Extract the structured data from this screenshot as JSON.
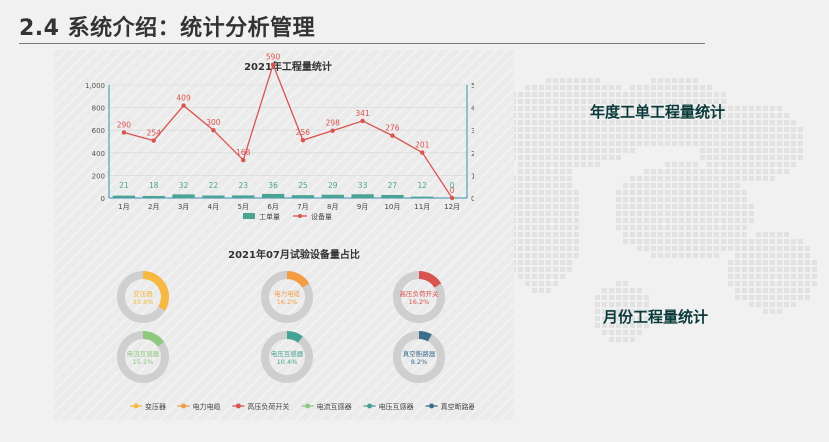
{
  "slide": {
    "title": "2.4 系统介绍：统计分析管理",
    "annual_label": "年度工单工程量统计",
    "monthly_label": "月份工程量统计"
  },
  "colors": {
    "bar": "#4ba396",
    "line": "#d9534f",
    "axis": "#3a8fb7",
    "ring_track": "#cfcfcf",
    "title_text": "#333333"
  },
  "chart_data": [
    {
      "type": "bar",
      "title": "2021年工程量统计",
      "categories": [
        "1月",
        "2月",
        "3月",
        "4月",
        "5月",
        "6月",
        "7月",
        "8月",
        "9月",
        "10月",
        "11月",
        "12月"
      ],
      "series": [
        {
          "name": "工单量",
          "kind": "bar",
          "axis": "left",
          "color": "#4ba396",
          "values": [
            21,
            18,
            32,
            22,
            23,
            36,
            25,
            29,
            33,
            27,
            12,
            0
          ]
        },
        {
          "name": "设备量",
          "kind": "line",
          "axis": "right",
          "color": "#d9534f",
          "values": [
            290,
            254,
            409,
            300,
            168,
            590,
            256,
            298,
            341,
            276,
            201,
            0
          ]
        }
      ],
      "y_left": {
        "min": 0,
        "max": 1000,
        "ticks": [
          "0",
          "200",
          "400",
          "600",
          "800",
          "1,000"
        ]
      },
      "y_right": {
        "min": 0,
        "max": 500,
        "ticks": [
          "0",
          "100",
          "200",
          "300",
          "400",
          "500"
        ]
      },
      "grid": true,
      "legend_position": "bottom"
    },
    {
      "type": "pie",
      "subtype": "donut",
      "title": "2021年07月试验设备量占比",
      "slices": [
        {
          "name": "变压器",
          "value": 33.8,
          "label": "33.8%",
          "color": "#f5b942"
        },
        {
          "name": "电力电缆",
          "value": 16.2,
          "label": "16.2%",
          "color": "#f39c41"
        },
        {
          "name": "高压负荷开关",
          "value": 16.2,
          "label": "16.2%",
          "color": "#d9534f"
        },
        {
          "name": "电流互感器",
          "value": 15.1,
          "label": "15.1%",
          "color": "#8dc97f"
        },
        {
          "name": "电压互感器",
          "value": 10.4,
          "label": "10.4%",
          "color": "#45a395"
        },
        {
          "name": "真空断路器",
          "value": 8.2,
          "label": "8.2%",
          "color": "#3d6e8c"
        }
      ],
      "legend_position": "bottom"
    }
  ]
}
